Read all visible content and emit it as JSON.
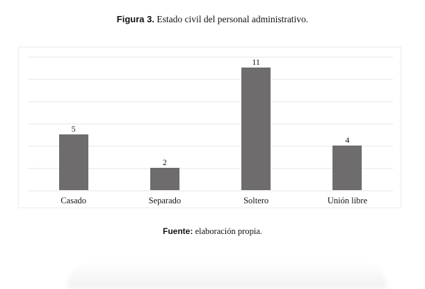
{
  "page": {
    "figure_label": "Figura 3.",
    "figure_caption": "Estado civil del personal administrativo.",
    "source_label": "Fuente:",
    "source_text": "elaboración propia."
  },
  "chart_data": {
    "type": "bar",
    "title": "Figura 3. Estado civil del personal administrativo.",
    "categories": [
      "Casado",
      "Separado",
      "Soltero",
      "Unión libre"
    ],
    "values": [
      5,
      2,
      11,
      4
    ],
    "value_labels": [
      "5",
      "2",
      "11",
      "4"
    ],
    "xlabel": "",
    "ylabel": "",
    "ylim": [
      0,
      12
    ],
    "gridline_step": 2,
    "grid": "horizontal",
    "legend_position": "none",
    "bar_color": "#6e6c6c",
    "gridline_color": "#f2f2f2",
    "panel_border_color": "#ececec",
    "source_note": "Fuente: elaboración propia."
  }
}
